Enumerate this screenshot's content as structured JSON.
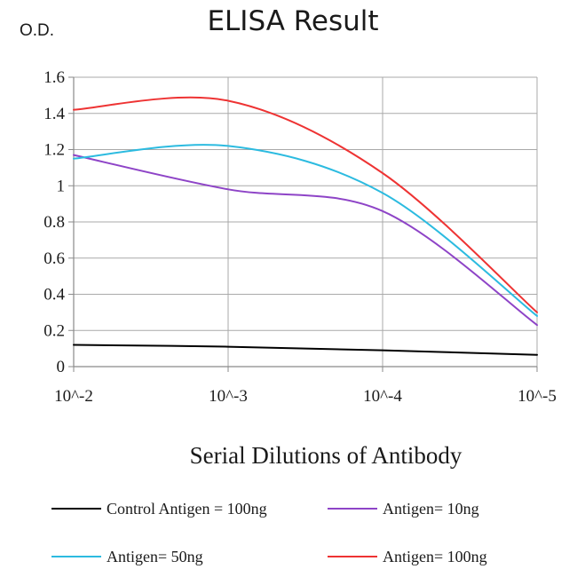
{
  "chart_data": {
    "type": "line",
    "title": "ELISA Result",
    "ylabel": "O.D.",
    "xlabel": "Serial Dilutions of Antibody",
    "categories": [
      "10^-2",
      "10^-3",
      "10^-4",
      "10^-5"
    ],
    "x_tick_labels": [
      "10^-2",
      "10^-3",
      "10^-4",
      "10^-5"
    ],
    "y_tick_labels": [
      "0",
      "0.2",
      "0.4",
      "0.6",
      "0.8",
      "1",
      "1.2",
      "1.4",
      "1.6"
    ],
    "ylim": [
      0,
      1.6
    ],
    "grid": true,
    "legend_position": "bottom",
    "smooth": true,
    "series": [
      {
        "name": "Control Antigen = 100ng",
        "color": "#000000",
        "values": [
          0.12,
          0.11,
          0.09,
          0.065
        ]
      },
      {
        "name": "Antigen= 10ng",
        "color": "#8e44c7",
        "values": [
          1.17,
          0.98,
          0.86,
          0.23
        ]
      },
      {
        "name": "Antigen= 50ng",
        "color": "#2cbbe0",
        "values": [
          1.15,
          1.22,
          0.96,
          0.28
        ]
      },
      {
        "name": "Antigen= 100ng",
        "color": "#ee3333",
        "values": [
          1.42,
          1.47,
          1.07,
          0.3
        ]
      }
    ]
  }
}
